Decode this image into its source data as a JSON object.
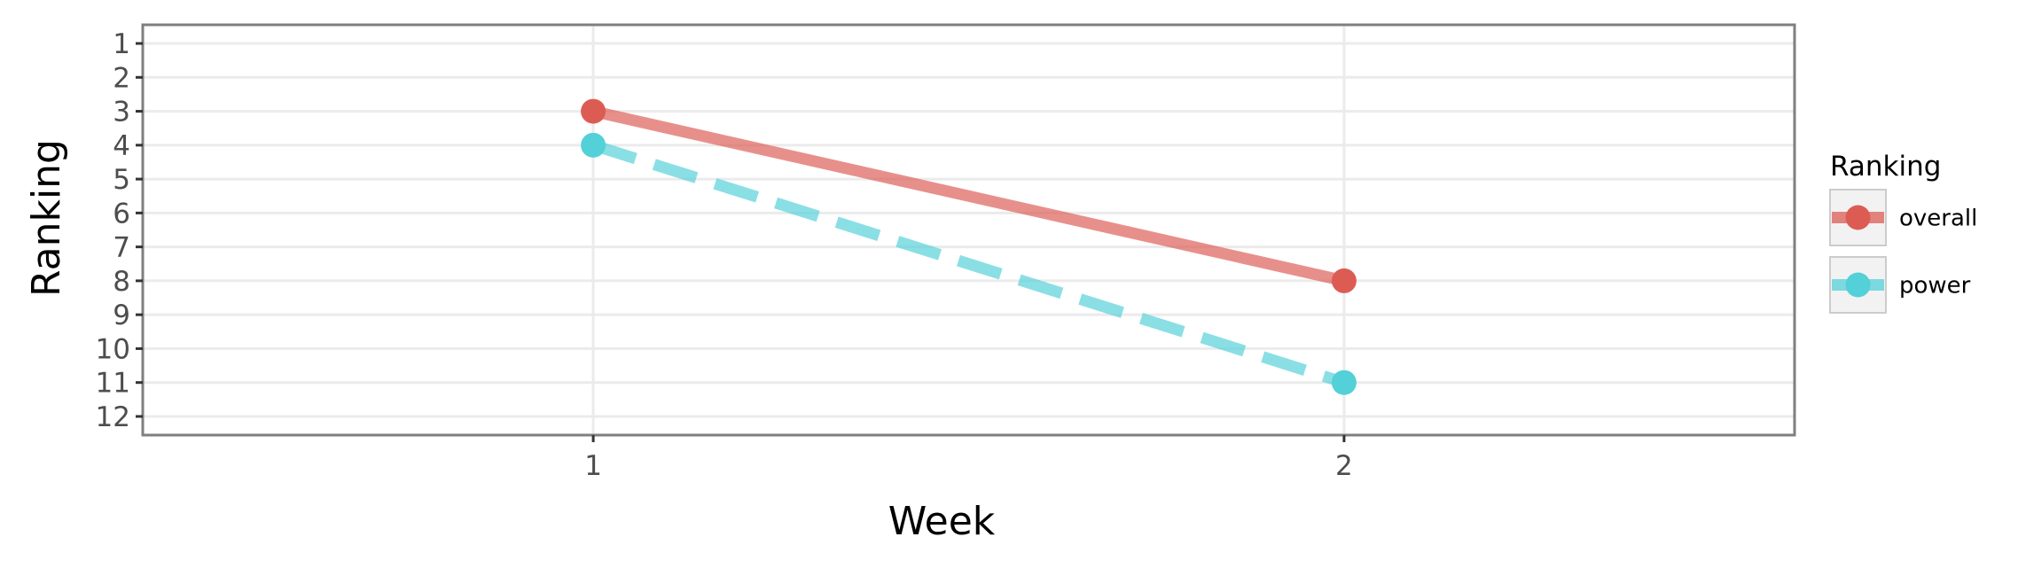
{
  "chart_data": {
    "type": "line",
    "title": "",
    "xlabel": "Week",
    "ylabel": "Ranking",
    "x": [
      1,
      2
    ],
    "x_ticks": [
      "1",
      "2"
    ],
    "y_ticks": [
      "1",
      "2",
      "3",
      "4",
      "5",
      "6",
      "7",
      "8",
      "9",
      "10",
      "11",
      "12"
    ],
    "y_reversed": true,
    "xlim": [
      0.4,
      2.6
    ],
    "ylim": [
      0.45,
      12.55
    ],
    "grid": true,
    "legend_title": "Ranking",
    "legend_position": "right",
    "series": [
      {
        "name": "overall",
        "values": [
          3,
          8
        ],
        "color": "#DC5C54",
        "linestyle": "solid"
      },
      {
        "name": "power",
        "values": [
          4,
          11
        ],
        "color": "#53D0D8",
        "linestyle": "dashed"
      }
    ]
  }
}
